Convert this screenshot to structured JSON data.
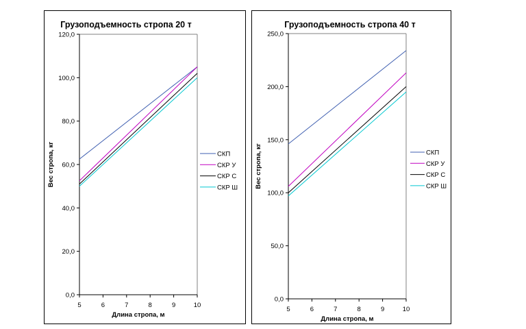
{
  "colors": {
    "СКП": "#3f5fb0",
    "СКР У": "#c000c0",
    "СКР С": "#000000",
    "СКР Ш": "#00c8d0"
  },
  "chart_data": [
    {
      "type": "line",
      "title": "Грузоподъемность стропа 20 т",
      "xlabel": "Длина стропа, м",
      "ylabel": "Вес стропа, кг",
      "xlim": [
        5,
        10
      ],
      "ylim": [
        0,
        120
      ],
      "x_ticks": [
        "5",
        "6",
        "7",
        "8",
        "9",
        "10"
      ],
      "y_ticks": [
        "0,0",
        "20,0",
        "40,0",
        "60,0",
        "80,0",
        "100,0",
        "120,0"
      ],
      "legend_position": "right",
      "x": [
        5,
        10
      ],
      "series": [
        {
          "name": "СКП",
          "values": [
            62.5,
            105
          ]
        },
        {
          "name": "СКР У",
          "values": [
            52.5,
            105
          ]
        },
        {
          "name": "СКР С",
          "values": [
            51,
            102
          ]
        },
        {
          "name": "СКР Ш",
          "values": [
            50,
            100
          ]
        }
      ]
    },
    {
      "type": "line",
      "title": "Грузоподъемность стропа 40 т",
      "xlabel": "Длина стропа, м",
      "ylabel": "Вес стропа, кг",
      "xlim": [
        5,
        10
      ],
      "ylim": [
        0,
        250
      ],
      "x_ticks": [
        "5",
        "6",
        "7",
        "8",
        "9",
        "10"
      ],
      "y_ticks": [
        "0,0",
        "50,0",
        "100,0",
        "150,0",
        "200,0",
        "250,0"
      ],
      "legend_position": "right",
      "x": [
        5,
        10
      ],
      "series": [
        {
          "name": "СКП",
          "values": [
            146,
            234
          ]
        },
        {
          "name": "СКР У",
          "values": [
            106,
            213
          ]
        },
        {
          "name": "СКР С",
          "values": [
            100,
            200
          ]
        },
        {
          "name": "СКР Ш",
          "values": [
            97,
            195
          ]
        }
      ]
    }
  ]
}
